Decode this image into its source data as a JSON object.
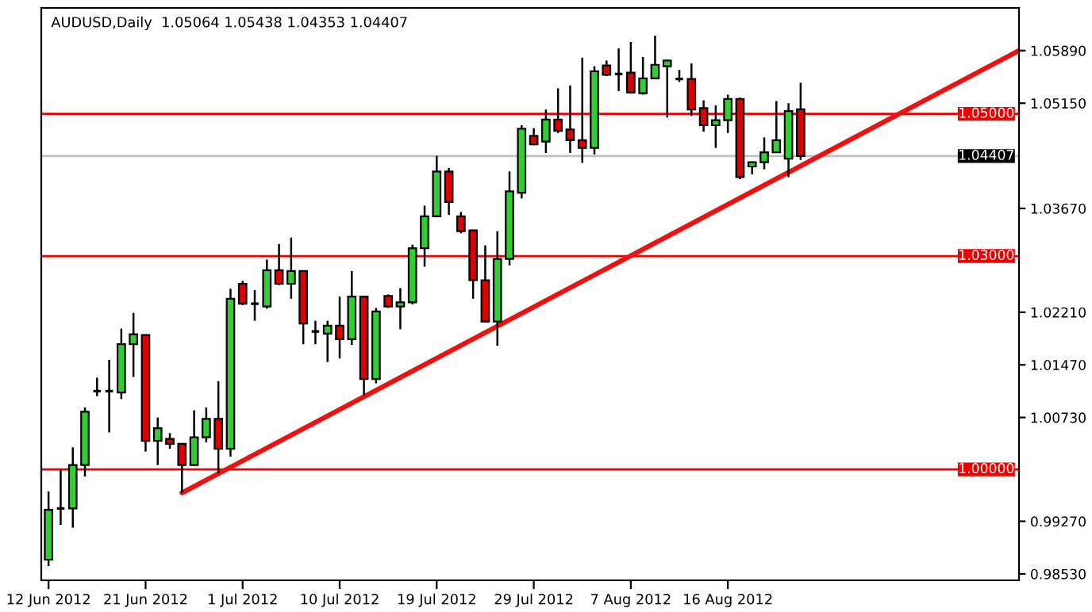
{
  "chart_data": {
    "type": "candlestick",
    "title": "AUDUSD,Daily  1.05064 1.05438 1.04353 1.04407",
    "categories": [
      "12 Jun 2012",
      null,
      null,
      null,
      null,
      null,
      null,
      null,
      "21 Jun 2012",
      null,
      null,
      null,
      null,
      null,
      null,
      null,
      "1 Jul 2012",
      null,
      null,
      null,
      null,
      null,
      null,
      null,
      "10 Jul 2012",
      null,
      null,
      null,
      null,
      null,
      null,
      null,
      "19 Jul 2012",
      null,
      null,
      null,
      null,
      null,
      null,
      null,
      "29 Jul 2012",
      null,
      null,
      null,
      null,
      null,
      null,
      null,
      "7 Aug 2012",
      null,
      null,
      null,
      null,
      null,
      null,
      null,
      "16 Aug 2012",
      null,
      null,
      null,
      null,
      null,
      null,
      null,
      null,
      null,
      null,
      null,
      null,
      null,
      null,
      null,
      null,
      null,
      null,
      null,
      null,
      null,
      null,
      null,
      null
    ],
    "ohlc": [
      [
        0.9873,
        0.9969,
        0.9864,
        0.9943
      ],
      [
        0.9945,
        0.9999,
        0.9922,
        0.9945
      ],
      [
        0.9945,
        1.0031,
        0.9918,
        1.0006
      ],
      [
        1.0006,
        1.0087,
        0.999,
        1.0081
      ],
      [
        1.011,
        1.0129,
        1.0103,
        1.011
      ],
      [
        1.011,
        1.0154,
        1.0052,
        1.011
      ],
      [
        1.0108,
        1.0198,
        1.0099,
        1.0176
      ],
      [
        1.0176,
        1.022,
        1.013,
        1.019
      ],
      [
        1.0189,
        1.019,
        1.0025,
        1.004
      ],
      [
        1.004,
        1.0073,
        1.0006,
        1.0058
      ],
      [
        1.0043,
        1.0051,
        1.0029,
        1.0036
      ],
      [
        1.0036,
        1.0037,
        0.9967,
        1.0006
      ],
      [
        1.0006,
        1.0083,
        1.0005,
        1.0045
      ],
      [
        1.0045,
        1.0087,
        1.0038,
        1.0071
      ],
      [
        1.0071,
        1.0124,
        0.9995,
        1.0029
      ],
      [
        1.0029,
        1.0254,
        1.0018,
        1.024
      ],
      [
        1.0261,
        1.0265,
        1.0231,
        1.0233
      ],
      [
        1.0233,
        1.0252,
        1.0209,
        1.0233
      ],
      [
        1.0229,
        1.0295,
        1.0226,
        1.028
      ],
      [
        1.028,
        1.0317,
        1.0259,
        1.0261
      ],
      [
        1.0261,
        1.0326,
        1.024,
        1.0279
      ],
      [
        1.0279,
        1.028,
        1.0176,
        1.0205
      ],
      [
        1.0194,
        1.0209,
        1.0176,
        1.0194
      ],
      [
        1.0191,
        1.0209,
        1.0151,
        1.0202
      ],
      [
        1.0202,
        1.0243,
        1.0156,
        1.0183
      ],
      [
        1.0183,
        1.0279,
        1.0175,
        1.0243
      ],
      [
        1.0243,
        1.0244,
        1.0104,
        1.0127
      ],
      [
        1.0127,
        1.0227,
        1.0121,
        1.0222
      ],
      [
        1.0244,
        1.0246,
        1.0227,
        1.0229
      ],
      [
        1.0229,
        1.0255,
        1.0197,
        1.0235
      ],
      [
        1.0235,
        1.0316,
        1.0232,
        1.0311
      ],
      [
        1.0311,
        1.0371,
        1.0285,
        1.0356
      ],
      [
        1.0356,
        1.0441,
        1.0355,
        1.0419
      ],
      [
        1.0419,
        1.0424,
        1.0358,
        1.0376
      ],
      [
        1.0356,
        1.0362,
        1.0332,
        1.0335
      ],
      [
        1.0336,
        1.0337,
        1.024,
        1.0266
      ],
      [
        1.0266,
        1.0315,
        1.0207,
        1.0208
      ],
      [
        1.0208,
        1.0335,
        1.0174,
        1.0296
      ],
      [
        1.0296,
        1.0419,
        1.0287,
        1.0391
      ],
      [
        1.0389,
        1.0484,
        1.0381,
        1.0479
      ],
      [
        1.0469,
        1.048,
        1.0456,
        1.0457
      ],
      [
        1.0461,
        1.0506,
        1.0445,
        1.0492
      ],
      [
        1.0492,
        1.0536,
        1.0473,
        1.0476
      ],
      [
        1.0478,
        1.054,
        1.0445,
        1.0463
      ],
      [
        1.0463,
        1.0579,
        1.0431,
        1.0452
      ],
      [
        1.0452,
        1.0567,
        1.0443,
        1.056
      ],
      [
        1.0568,
        1.0575,
        1.0553,
        1.0555
      ],
      [
        1.0556,
        1.0592,
        1.0532,
        1.0556
      ],
      [
        1.0558,
        1.0601,
        1.0529,
        1.053
      ],
      [
        1.0529,
        1.058,
        1.0527,
        1.055
      ],
      [
        1.055,
        1.061,
        1.0549,
        1.0569
      ],
      [
        1.0567,
        1.0576,
        1.0495,
        1.0575
      ],
      [
        1.0549,
        1.0562,
        1.0545,
        1.0549
      ],
      [
        1.0549,
        1.0571,
        1.0497,
        1.0506
      ],
      [
        1.0508,
        1.0519,
        1.0475,
        1.0484
      ],
      [
        1.0484,
        1.0512,
        1.0452,
        1.0491
      ],
      [
        1.0491,
        1.0527,
        1.0473,
        1.0521
      ],
      [
        1.0521,
        1.0523,
        1.0408,
        1.0411
      ],
      [
        1.0426,
        1.0433,
        1.0415,
        1.0432
      ],
      [
        1.0432,
        1.0467,
        1.0422,
        1.0446
      ],
      [
        1.0446,
        1.0518,
        1.0445,
        1.0463
      ],
      [
        1.0437,
        1.0515,
        1.0411,
        1.0504
      ],
      [
        1.05064,
        1.05438,
        1.04353,
        1.04407
      ],
      null,
      null,
      null,
      null,
      null,
      null,
      null,
      null,
      null,
      null,
      null,
      null,
      null,
      null,
      null,
      null,
      null,
      null
    ],
    "colors": [
      "#32cd32",
      "#000000",
      "#32cd32",
      "#32cd32",
      "#000000",
      "#000000",
      "#32cd32",
      "#32cd32",
      "#dd0000",
      "#32cd32",
      "#dd0000",
      "#dd0000",
      "#32cd32",
      "#32cd32",
      "#dd0000",
      "#32cd32",
      "#dd0000",
      "#000000",
      "#32cd32",
      "#dd0000",
      "#32cd32",
      "#dd0000",
      "#000000",
      "#32cd32",
      "#dd0000",
      "#32cd32",
      "#dd0000",
      "#32cd32",
      "#dd0000",
      "#32cd32",
      "#32cd32",
      "#32cd32",
      "#32cd32",
      "#dd0000",
      "#dd0000",
      "#dd0000",
      "#dd0000",
      "#32cd32",
      "#32cd32",
      "#32cd32",
      "#dd0000",
      "#32cd32",
      "#dd0000",
      "#dd0000",
      "#dd0000",
      "#32cd32",
      "#dd0000",
      "#000000",
      "#dd0000",
      "#32cd32",
      "#32cd32",
      "#32cd32",
      "#000000",
      "#dd0000",
      "#dd0000",
      "#32cd32",
      "#32cd32",
      "#dd0000",
      "#32cd32",
      "#32cd32",
      "#32cd32",
      "#32cd32",
      "#dd0000",
      null,
      null,
      null,
      null,
      null,
      null,
      null,
      null,
      null,
      null,
      null,
      null,
      null,
      null,
      null,
      null,
      null,
      null
    ],
    "series": [
      {
        "type": "line",
        "color": "#ee1111",
        "values": [
          null,
          null,
          null,
          null,
          null,
          null,
          null,
          null,
          null,
          null,
          null,
          0.9967,
          null,
          null,
          null,
          null,
          null,
          null,
          null,
          null,
          null,
          null,
          null,
          null,
          null,
          null,
          null,
          null,
          null,
          null,
          null,
          null,
          null,
          null,
          null,
          null,
          null,
          null,
          null,
          null,
          null,
          null,
          null,
          null,
          null,
          null,
          null,
          null,
          null,
          null,
          null,
          null,
          null,
          null,
          null,
          null,
          null,
          null,
          null,
          null,
          null,
          null,
          null,
          null,
          null,
          null,
          null,
          null,
          null,
          null,
          null,
          null,
          null,
          null,
          null,
          null,
          null,
          null,
          null,
          null,
          1.0589
        ]
      }
    ],
    "ylim": [
      0.9844,
      1.0649
    ],
    "yticks": [
      {
        "value": 0.9853,
        "label": "0.98530"
      },
      {
        "value": 0.9927,
        "label": "0.99270"
      },
      {
        "value": 1.0073,
        "label": "1.00730"
      },
      {
        "value": 1.0147,
        "label": "1.01470"
      },
      {
        "value": 1.0221,
        "label": "1.02210"
      },
      {
        "value": 1.0367,
        "label": "1.03670"
      },
      {
        "value": 1.0515,
        "label": "1.05150"
      },
      {
        "value": 1.0589,
        "label": "1.05890"
      }
    ],
    "ref_lines": [
      {
        "axis": "y",
        "value": 1.05,
        "label": "1.05000",
        "color": "#ee0000"
      },
      {
        "axis": "y",
        "value": 1.03,
        "label": "1.03000",
        "color": "#ee0000"
      },
      {
        "axis": "y",
        "value": 1.0,
        "label": "1.00000",
        "color": "#ee0000"
      },
      {
        "axis": "y",
        "value": 1.04407,
        "label": "1.04407",
        "color": "#c0c0c0"
      }
    ],
    "grid": false,
    "legend": false
  }
}
